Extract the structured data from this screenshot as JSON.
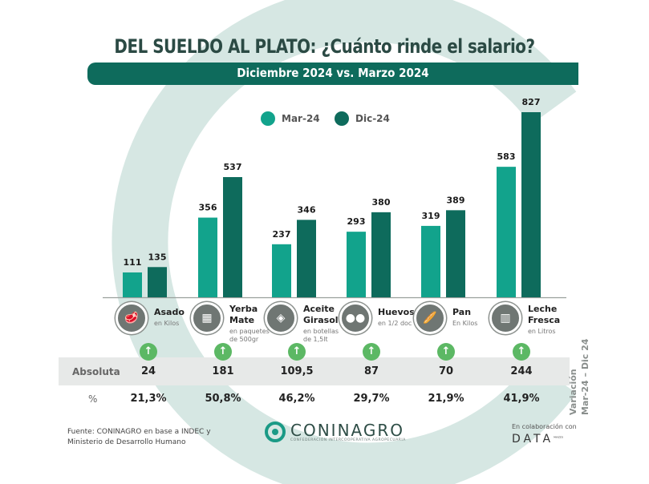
{
  "header": {
    "title": "DEL SUELDO AL PLATO: ¿Cuánto rinde el salario?",
    "subtitle": "Diciembre 2024 vs. Marzo 2024"
  },
  "colors": {
    "mar24": "#12a38c",
    "dic24": "#0e6b5c",
    "banner": "#0e6b5c",
    "ring": "#d6e7e3",
    "arrow": "#5cb864",
    "row_bg": "#e7e9e8"
  },
  "chart_data": {
    "type": "bar",
    "title": "DEL SUELDO AL PLATO: ¿Cuánto rinde el salario?",
    "subtitle": "Diciembre 2024 vs. Marzo 2024",
    "xlabel": "",
    "ylabel": "",
    "ylim": [
      0,
      827
    ],
    "grid": false,
    "legend_position": "top-center",
    "categories": [
      "Asado",
      "Yerba Mate",
      "Aceite Girasol",
      "Huevos",
      "Pan",
      "Leche Fresca"
    ],
    "series": [
      {
        "name": "Mar-24",
        "values": [
          111,
          356,
          237,
          293,
          319,
          583
        ]
      },
      {
        "name": "Dic-24",
        "values": [
          135,
          537,
          346,
          380,
          389,
          827
        ]
      }
    ]
  },
  "legend": [
    {
      "label": "Mar-24"
    },
    {
      "label": "Dic-24"
    }
  ],
  "categories": [
    {
      "name_lines": [
        "Asado"
      ],
      "unit_lines": [
        "en Kilos"
      ],
      "icon": "meat-icon",
      "glyph": "🥩"
    },
    {
      "name_lines": [
        "Yerba",
        "Mate"
      ],
      "unit_lines": [
        "en paquetes",
        "de 500gr"
      ],
      "icon": "yerba-package-icon",
      "glyph": "▦"
    },
    {
      "name_lines": [
        "Aceite",
        "Girasol"
      ],
      "unit_lines": [
        "en botellas",
        "de 1,5lt"
      ],
      "icon": "oil-bottle-icon",
      "glyph": "◈"
    },
    {
      "name_lines": [
        "Huevos"
      ],
      "unit_lines": [
        "en 1/2 doc"
      ],
      "icon": "eggs-icon",
      "glyph": "●●"
    },
    {
      "name_lines": [
        "Pan"
      ],
      "unit_lines": [
        "En Kilos"
      ],
      "icon": "bread-icon",
      "glyph": "🥖"
    },
    {
      "name_lines": [
        "Leche",
        "Fresca"
      ],
      "unit_lines": [
        "en Litros"
      ],
      "icon": "milk-icon",
      "glyph": "▥"
    }
  ],
  "variation": {
    "label_line1": "Variación",
    "label_line2": "Mar-24 – Dic 24",
    "arrow_glyph": "↑",
    "absolute_label": "Absoluta",
    "percent_label": "%",
    "absolute": [
      "24",
      "181",
      "109,5",
      "87",
      "70",
      "244"
    ],
    "percent": [
      "21,3%",
      "50,8%",
      "46,2%",
      "29,7%",
      "21,9%",
      "41,9%"
    ]
  },
  "footer": {
    "source_line1": "Fuente: CONINAGRO en base a INDEC y",
    "source_line2": "Ministerio de Desarrollo Humano",
    "logo_name": "CONINAGRO",
    "logo_sub": "CONFEDERACIÓN INTERCOOPERATIVA AGROPECUARIA",
    "collab_text": "En colaboración con",
    "collab_logo": "DATA",
    "collab_logo_sup": "MIAZZO"
  }
}
